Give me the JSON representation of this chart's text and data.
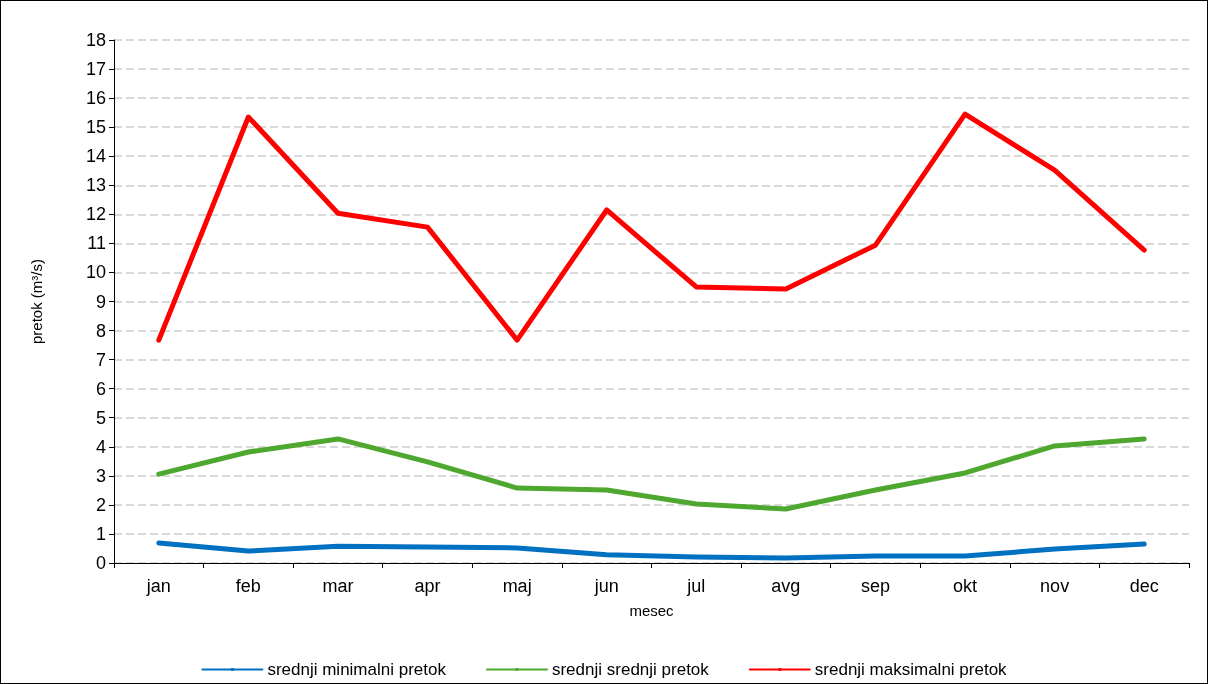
{
  "chart_data": {
    "type": "line",
    "xlabel": "mesec",
    "ylabel": "pretok (m³/s)",
    "categories": [
      "jan",
      "feb",
      "mar",
      "apr",
      "maj",
      "jun",
      "jul",
      "avg",
      "sep",
      "okt",
      "nov",
      "dec"
    ],
    "series": [
      {
        "name": "srednji minimalni pretok",
        "color": "#0070c0",
        "values": [
          0.69,
          0.41,
          0.58,
          0.55,
          0.52,
          0.28,
          0.21,
          0.17,
          0.24,
          0.24,
          0.48,
          0.65
        ]
      },
      {
        "name": "srednji srednji pretok",
        "color": "#4ea72e",
        "values": [
          3.06,
          3.82,
          4.27,
          3.48,
          2.58,
          2.51,
          2.03,
          1.86,
          2.51,
          3.1,
          4.03,
          4.27
        ]
      },
      {
        "name": "srednji maksimalni pretok",
        "color": "#ff0000",
        "values": [
          7.67,
          15.35,
          12.04,
          11.56,
          7.67,
          12.15,
          9.5,
          9.43,
          10.94,
          15.45,
          13.52,
          10.77
        ]
      }
    ],
    "ylim": [
      0,
      18
    ],
    "yticks": [
      0,
      1,
      2,
      3,
      4,
      5,
      6,
      7,
      8,
      9,
      10,
      11,
      12,
      13,
      14,
      15,
      16,
      17,
      18
    ],
    "grid": "y",
    "legend": "bottom",
    "marker": "none",
    "line_style": "solid"
  }
}
